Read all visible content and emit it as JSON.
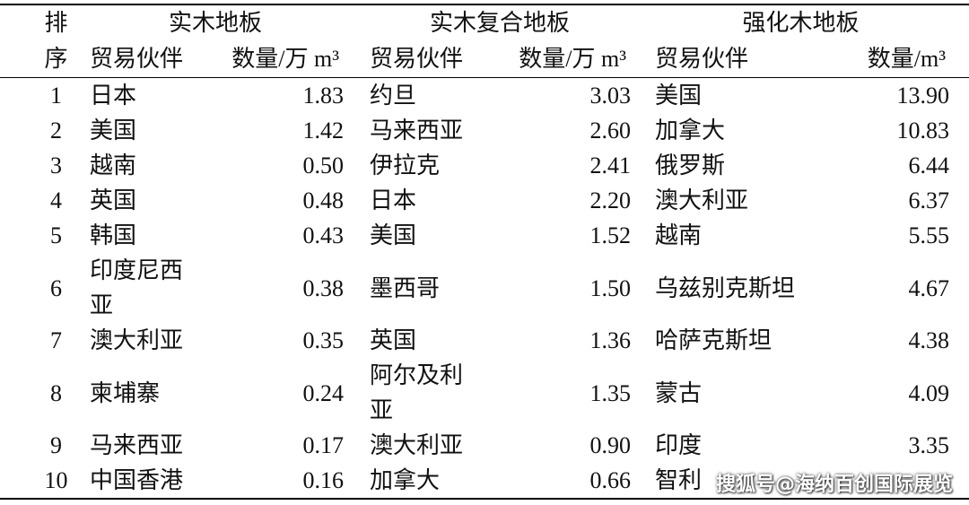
{
  "header": {
    "rank": [
      "排",
      "序"
    ],
    "groups": [
      {
        "title": "实木地板",
        "partner_label": "贸易伙伴",
        "quantity_label": "数量/万 m³"
      },
      {
        "title": "实木复合地板",
        "partner_label": "贸易伙伴",
        "quantity_label": "数量/万 m³"
      },
      {
        "title": "强化木地板",
        "partner_label": "贸易伙伴",
        "quantity_label": "数量/m³"
      }
    ]
  },
  "rows": [
    {
      "rank": 1,
      "cells": [
        {
          "partner": "日本",
          "quantity": "1.83"
        },
        {
          "partner": "约旦",
          "quantity": "3.03"
        },
        {
          "partner": "美国",
          "quantity": "13.90"
        }
      ]
    },
    {
      "rank": 2,
      "cells": [
        {
          "partner": "美国",
          "quantity": "1.42"
        },
        {
          "partner": "马来西亚",
          "quantity": "2.60"
        },
        {
          "partner": "加拿大",
          "quantity": "10.83"
        }
      ]
    },
    {
      "rank": 3,
      "cells": [
        {
          "partner": "越南",
          "quantity": "0.50"
        },
        {
          "partner": "伊拉克",
          "quantity": "2.41"
        },
        {
          "partner": "俄罗斯",
          "quantity": "6.44"
        }
      ]
    },
    {
      "rank": 4,
      "cells": [
        {
          "partner": "英国",
          "quantity": "0.48"
        },
        {
          "partner": "日本",
          "quantity": "2.20"
        },
        {
          "partner": "澳大利亚",
          "quantity": "6.37"
        }
      ]
    },
    {
      "rank": 5,
      "cells": [
        {
          "partner": "韩国",
          "quantity": "0.43"
        },
        {
          "partner": "美国",
          "quantity": "1.52"
        },
        {
          "partner": "越南",
          "quantity": "5.55"
        }
      ]
    },
    {
      "rank": 6,
      "cells": [
        {
          "partner": "印度尼西亚",
          "quantity": "0.38"
        },
        {
          "partner": "墨西哥",
          "quantity": "1.50"
        },
        {
          "partner": "乌兹别克斯坦",
          "quantity": "4.67"
        }
      ]
    },
    {
      "rank": 7,
      "cells": [
        {
          "partner": "澳大利亚",
          "quantity": "0.35"
        },
        {
          "partner": "英国",
          "quantity": "1.36"
        },
        {
          "partner": "哈萨克斯坦",
          "quantity": "4.38"
        }
      ]
    },
    {
      "rank": 8,
      "cells": [
        {
          "partner": "柬埔寨",
          "quantity": "0.24"
        },
        {
          "partner": "阿尔及利亚",
          "quantity": "1.35"
        },
        {
          "partner": "蒙古",
          "quantity": "4.09"
        }
      ]
    },
    {
      "rank": 9,
      "cells": [
        {
          "partner": "马来西亚",
          "quantity": "0.17"
        },
        {
          "partner": "澳大利亚",
          "quantity": "0.90"
        },
        {
          "partner": "印度",
          "quantity": "3.35"
        }
      ]
    },
    {
      "rank": 10,
      "cells": [
        {
          "partner": "中国香港",
          "quantity": "0.16"
        },
        {
          "partner": "加拿大",
          "quantity": "0.66"
        },
        {
          "partner": "智利"
        }
      ]
    }
  ],
  "watermark": "搜狐号@海纳百创国际展览"
}
